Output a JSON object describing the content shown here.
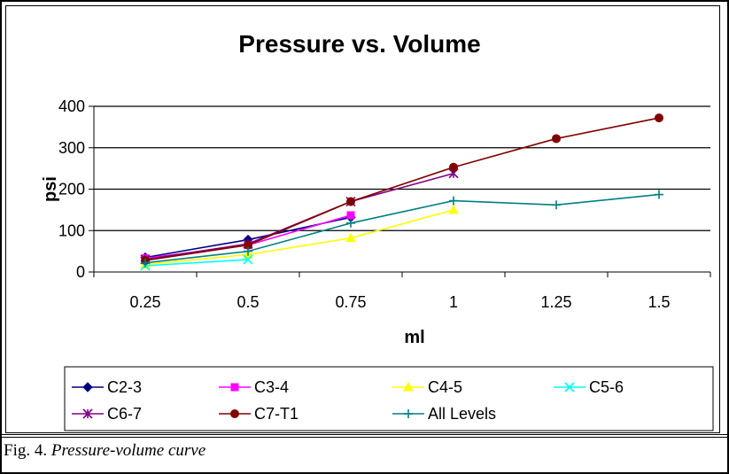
{
  "chart_data": {
    "type": "line",
    "title": "Pressure vs. Volume",
    "xlabel": "ml",
    "ylabel": "psi",
    "categories": [
      "0.25",
      "0.5",
      "0.75",
      "1",
      "1.25",
      "1.5"
    ],
    "ylim": [
      0,
      400
    ],
    "yticks": [
      "0",
      "100",
      "200",
      "300",
      "400"
    ],
    "grid": "horizontal",
    "legend_position": "bottom",
    "series": [
      {
        "name": "C2-3",
        "color": "#000080",
        "marker": "diamond",
        "values": [
          35,
          78,
          132,
          null,
          null,
          null
        ]
      },
      {
        "name": "C3-4",
        "color": "#ff00ff",
        "marker": "square",
        "values": [
          33,
          65,
          137,
          null,
          null,
          null
        ]
      },
      {
        "name": "C4-5",
        "color": "#ffff00",
        "marker": "triangle",
        "values": [
          18,
          42,
          82,
          150,
          null,
          null
        ]
      },
      {
        "name": "C5-6",
        "color": "#00ffff",
        "marker": "x",
        "values": [
          15,
          30,
          null,
          null,
          null,
          null
        ]
      },
      {
        "name": "C6-7",
        "color": "#800080",
        "marker": "star",
        "values": [
          30,
          68,
          170,
          238,
          null,
          null
        ]
      },
      {
        "name": "C7-T1",
        "color": "#800000",
        "marker": "circle",
        "values": [
          28,
          65,
          170,
          253,
          322,
          372
        ]
      },
      {
        "name": "All Levels",
        "color": "#008080",
        "marker": "plus",
        "values": [
          22,
          50,
          118,
          172,
          162,
          187
        ]
      }
    ]
  },
  "caption": {
    "label": "Fig. 4.",
    "text": "Pressure-volume curve"
  }
}
